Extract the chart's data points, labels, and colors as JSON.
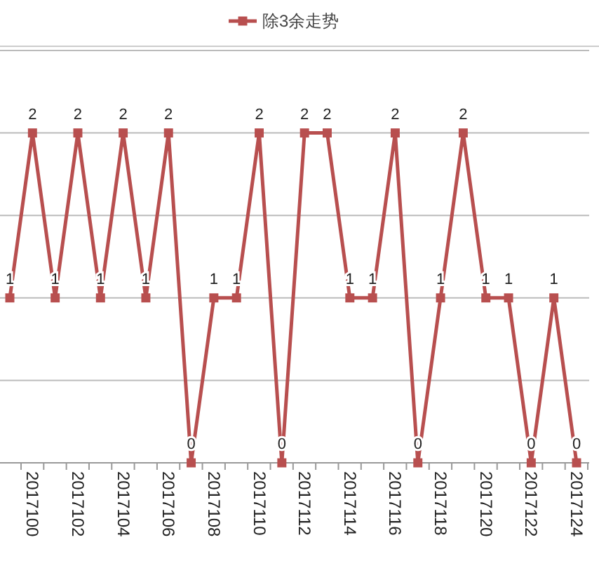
{
  "chart_data": {
    "type": "line",
    "categories": [
      null,
      "2017100",
      null,
      "2017102",
      null,
      "2017104",
      null,
      "2017106",
      null,
      "2017108",
      null,
      "2017110",
      null,
      "2017112",
      null,
      "2017114",
      null,
      "2017116",
      null,
      "2017118",
      null,
      "2017120",
      null,
      "2017122",
      null,
      "2017124"
    ],
    "series": [
      {
        "name": "除3余走势",
        "color": "#b84f4f",
        "values": [
          1,
          2,
          1,
          2,
          1,
          2,
          1,
          2,
          0,
          1,
          1,
          2,
          0,
          2,
          2,
          1,
          1,
          2,
          0,
          1,
          2,
          1,
          1,
          0,
          1,
          0
        ]
      }
    ],
    "ylim": [
      0,
      2.5
    ],
    "yticks": [
      {
        "value": 0,
        "label": null
      },
      {
        "value": 0.5,
        "label": null
      },
      {
        "value": 1,
        "label": null
      },
      {
        "value": 1.5,
        "label": null
      },
      {
        "value": 2,
        "label": null
      },
      {
        "value": 2.5,
        "label": null
      }
    ],
    "tick_labels": "x",
    "grid": "y",
    "legend": "top",
    "marker": "square",
    "data_labels": true
  }
}
